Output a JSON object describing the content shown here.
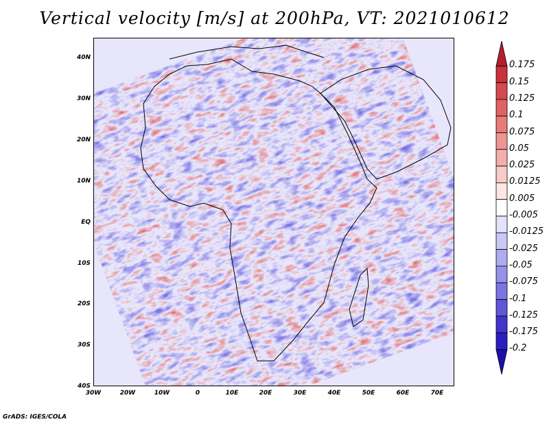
{
  "title": "Vertical velocity [m/s] at 200hPa, VT: 2021010612",
  "credit": "GrADS: IGES/COLA",
  "axes": {
    "lat_labels": [
      "40N",
      "30N",
      "20N",
      "10N",
      "EQ",
      "10S",
      "20S",
      "30S",
      "40S"
    ],
    "lon_labels": [
      "30W",
      "20W",
      "10W",
      "0",
      "10E",
      "20E",
      "30E",
      "40E",
      "50E",
      "60E",
      "70E"
    ]
  },
  "colorbar": {
    "labels": [
      "0.175",
      "0.15",
      "0.125",
      "0.1",
      "0.075",
      "0.05",
      "0.025",
      "0.0125",
      "0.005",
      "-0.005",
      "-0.0125",
      "-0.025",
      "-0.05",
      "-0.075",
      "-0.1",
      "-0.125",
      "-0.175",
      "-0.2"
    ],
    "colors": [
      "#b51e2a",
      "#c8323a",
      "#d6494d",
      "#e06262",
      "#e77b7a",
      "#ee9593",
      "#f3afac",
      "#f8cbc8",
      "#fde6e4",
      "#ffffff",
      "#e3e1fb",
      "#cbc8f6",
      "#b0acf0",
      "#9791ea",
      "#7c74e2",
      "#5f56d8",
      "#4235cc",
      "#2b1ec0",
      "#1d10a8"
    ]
  }
}
